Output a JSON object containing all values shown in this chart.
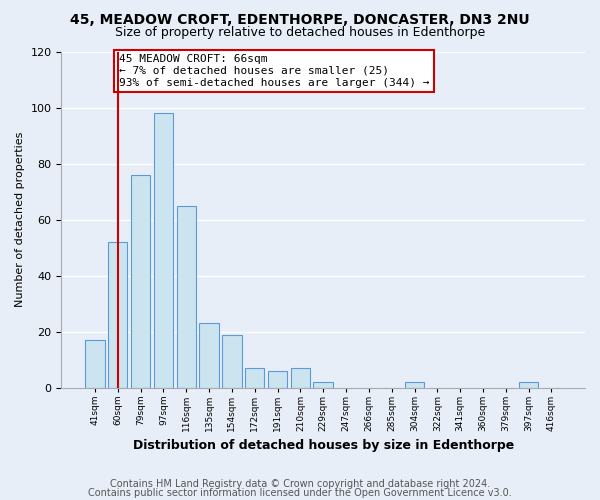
{
  "title1": "45, MEADOW CROFT, EDENTHORPE, DONCASTER, DN3 2NU",
  "title2": "Size of property relative to detached houses in Edenthorpe",
  "xlabel": "Distribution of detached houses by size in Edenthorpe",
  "ylabel": "Number of detached properties",
  "categories": [
    "41sqm",
    "60sqm",
    "79sqm",
    "97sqm",
    "116sqm",
    "135sqm",
    "154sqm",
    "172sqm",
    "191sqm",
    "210sqm",
    "229sqm",
    "247sqm",
    "266sqm",
    "285sqm",
    "304sqm",
    "322sqm",
    "341sqm",
    "360sqm",
    "379sqm",
    "397sqm",
    "416sqm"
  ],
  "values": [
    17,
    52,
    76,
    98,
    65,
    23,
    19,
    7,
    6,
    7,
    2,
    0,
    0,
    0,
    2,
    0,
    0,
    0,
    0,
    2,
    0
  ],
  "bar_color": "#cce4f0",
  "bar_edge_color": "#5b9bd5",
  "vline_x": 1,
  "vline_color": "#cc0000",
  "annotation_text": "45 MEADOW CROFT: 66sqm\n← 7% of detached houses are smaller (25)\n93% of semi-detached houses are larger (344) →",
  "annotation_box_color": "#ffffff",
  "annotation_box_edge": "#cc0000",
  "ylim": [
    0,
    120
  ],
  "yticks": [
    0,
    20,
    40,
    60,
    80,
    100,
    120
  ],
  "footer1": "Contains HM Land Registry data © Crown copyright and database right 2024.",
  "footer2": "Contains public sector information licensed under the Open Government Licence v3.0.",
  "bg_color": "#e8eef8",
  "title1_fontsize": 10,
  "title2_fontsize": 9,
  "xlabel_fontsize": 9,
  "ylabel_fontsize": 8,
  "footer_fontsize": 7
}
